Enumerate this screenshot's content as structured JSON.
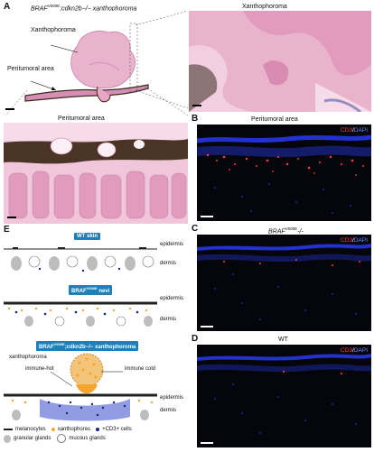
{
  "panels": {
    "A": {
      "label": "A",
      "main_title_prefix": "BRAF",
      "main_title_sup": "V600E",
      "main_title_suffix": ";cdkn2b−/− xanthophoroma",
      "annotations": [
        "Xanthophoroma",
        "Peritumoral area"
      ],
      "zoom_top_title": "Xanthophoroma",
      "zoom_bottom_title": "Peritumoral area"
    },
    "B": {
      "label": "B",
      "title": "Peritumoral area",
      "stain_cd3": "CD3",
      "stain_sep": "/",
      "stain_dapi": "DAPI"
    },
    "C": {
      "label": "C",
      "title_italic": "BRAF",
      "title_sup": "V600E",
      "title_suffix": "-/-",
      "stain_cd3": "CD3",
      "stain_sep": "/",
      "stain_dapi": "DAPI"
    },
    "D": {
      "label": "D",
      "title": "WT",
      "stain_cd3": "CD3",
      "stain_sep": "/",
      "stain_dapi": "DAPI"
    },
    "E": {
      "label": "E",
      "sections": [
        {
          "banner": "WT skin",
          "layers": [
            "epidermis",
            "dermis"
          ]
        },
        {
          "banner_prefix": "BRAF",
          "banner_sup": "V600E",
          "banner_suffix": " nevi",
          "layers": [
            "epidermis",
            "dermis"
          ]
        },
        {
          "banner_prefix": "BRAF",
          "banner_sup": "V600E",
          "banner_suffix": ";cdkn2b−/− xanthophoroma",
          "layers": [
            "epidermis",
            "dermis"
          ],
          "annotations": [
            "xanthophoroma",
            "immune-hot",
            "immune cold"
          ]
        }
      ],
      "legend": [
        "melanocytes",
        "xanthophores",
        "+CD3+ cells",
        "granular glands",
        "mucous glands"
      ]
    }
  },
  "colors": {
    "he_pink": "#e7a6c4",
    "he_dark": "#3b2a1e",
    "cd3_red": "#ff3a3a",
    "dapi_blue": "#2a3cff",
    "banner_blue": "#1f7fb8",
    "xanthophore_orange": "#f3a62b"
  }
}
